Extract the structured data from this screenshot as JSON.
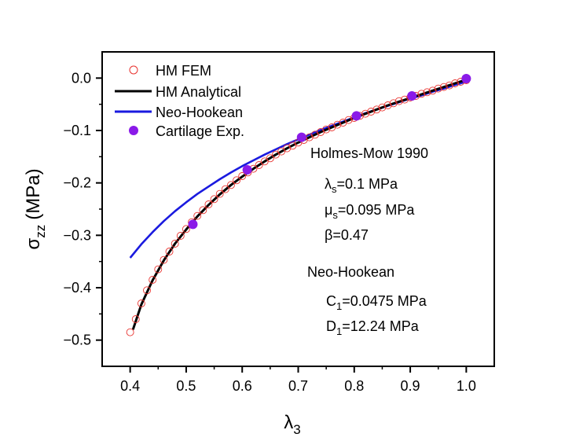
{
  "chart_data": {
    "type": "line",
    "xlabel": "λ",
    "xlabel_sub": "3",
    "ylabel": "σ",
    "ylabel_sub": "zz",
    "ylabel_unit": "(MPa)",
    "xlim": [
      0.35,
      1.05
    ],
    "ylim": [
      -0.55,
      0.05
    ],
    "xticks": [
      0.4,
      0.5,
      0.6,
      0.7,
      0.8,
      0.9,
      1.0
    ],
    "xtick_labels": [
      "0.4",
      "0.5",
      "0.6",
      "0.7",
      "0.8",
      "0.9",
      "1.0"
    ],
    "yticks": [
      0.0,
      -0.1,
      -0.2,
      -0.3,
      -0.4,
      -0.5
    ],
    "ytick_labels": [
      "0.0",
      "−0.1",
      "−0.2",
      "−0.3",
      "−0.4",
      "−0.5"
    ],
    "grid": false,
    "legend_position": "top-left",
    "series": [
      {
        "name": "HM FEM",
        "kind": "markers-open",
        "color": "#e8322e",
        "x": [
          0.4,
          0.41,
          0.42,
          0.43,
          0.44,
          0.45,
          0.46,
          0.47,
          0.48,
          0.49,
          0.5,
          0.51,
          0.52,
          0.53,
          0.54,
          0.55,
          0.56,
          0.57,
          0.58,
          0.59,
          0.6,
          0.61,
          0.62,
          0.63,
          0.64,
          0.65,
          0.66,
          0.67,
          0.68,
          0.69,
          0.7,
          0.71,
          0.72,
          0.73,
          0.74,
          0.75,
          0.76,
          0.77,
          0.78,
          0.79,
          0.8,
          0.81,
          0.82,
          0.83,
          0.84,
          0.85,
          0.86,
          0.87,
          0.88,
          0.89,
          0.9,
          0.91,
          0.92,
          0.93,
          0.94,
          0.95,
          0.96,
          0.97,
          0.98,
          0.99,
          1.0
        ],
        "y": [
          -0.485,
          -0.46,
          -0.43,
          -0.405,
          -0.385,
          -0.365,
          -0.347,
          -0.331,
          -0.316,
          -0.301,
          -0.288,
          -0.275,
          -0.263,
          -0.252,
          -0.241,
          -0.231,
          -0.221,
          -0.212,
          -0.204,
          -0.195,
          -0.187,
          -0.18,
          -0.173,
          -0.166,
          -0.159,
          -0.153,
          -0.146,
          -0.14,
          -0.134,
          -0.129,
          -0.123,
          -0.118,
          -0.113,
          -0.108,
          -0.103,
          -0.098,
          -0.094,
          -0.089,
          -0.085,
          -0.08,
          -0.076,
          -0.072,
          -0.068,
          -0.064,
          -0.06,
          -0.056,
          -0.052,
          -0.048,
          -0.044,
          -0.041,
          -0.037,
          -0.034,
          -0.03,
          -0.027,
          -0.024,
          -0.02,
          -0.017,
          -0.014,
          -0.01,
          -0.007,
          -0.004
        ]
      },
      {
        "name": "HM Analytical",
        "kind": "line",
        "color": "#000000",
        "x": [
          0.405,
          0.42,
          0.44,
          0.46,
          0.48,
          0.5,
          0.52,
          0.54,
          0.56,
          0.58,
          0.6,
          0.62,
          0.64,
          0.66,
          0.68,
          0.7,
          0.72,
          0.74,
          0.76,
          0.78,
          0.8,
          0.82,
          0.84,
          0.86,
          0.88,
          0.9,
          0.92,
          0.94,
          0.96,
          0.98,
          1.0
        ],
        "y": [
          -0.48,
          -0.432,
          -0.386,
          -0.348,
          -0.316,
          -0.289,
          -0.264,
          -0.242,
          -0.222,
          -0.204,
          -0.188,
          -0.173,
          -0.159,
          -0.146,
          -0.134,
          -0.123,
          -0.113,
          -0.103,
          -0.094,
          -0.085,
          -0.076,
          -0.068,
          -0.06,
          -0.052,
          -0.045,
          -0.038,
          -0.031,
          -0.024,
          -0.017,
          -0.01,
          -0.003
        ]
      },
      {
        "name": "Neo-Hookean",
        "kind": "line",
        "color": "#1a1adf",
        "x": [
          0.4,
          0.42,
          0.44,
          0.46,
          0.48,
          0.5,
          0.52,
          0.54,
          0.56,
          0.58,
          0.6,
          0.62,
          0.64,
          0.66,
          0.68,
          0.7,
          0.72,
          0.74,
          0.76,
          0.78,
          0.8,
          0.82,
          0.84,
          0.86,
          0.88,
          0.9,
          0.92,
          0.94,
          0.96,
          0.98,
          1.0
        ],
        "y": [
          -0.343,
          -0.317,
          -0.294,
          -0.273,
          -0.254,
          -0.237,
          -0.221,
          -0.207,
          -0.193,
          -0.18,
          -0.168,
          -0.157,
          -0.146,
          -0.136,
          -0.126,
          -0.117,
          -0.108,
          -0.099,
          -0.091,
          -0.083,
          -0.075,
          -0.067,
          -0.06,
          -0.053,
          -0.046,
          -0.039,
          -0.033,
          -0.026,
          -0.02,
          -0.013,
          -0.007
        ]
      },
      {
        "name": "Cartilage Exp.",
        "kind": "markers-filled",
        "color": "#8a1ae8",
        "x": [
          0.512,
          0.609,
          0.706,
          0.804,
          0.903,
          1.0
        ],
        "y": [
          -0.279,
          -0.175,
          -0.113,
          -0.072,
          -0.034,
          -0.001
        ]
      }
    ],
    "annotations": {
      "hm_title": "Holmes-Mow 1990",
      "hm_lambda_sym": "λ",
      "hm_lambda_sub": "s",
      "hm_lambda_val": "=0.1 MPa",
      "hm_mu_sym": "μ",
      "hm_mu_sub": "s",
      "hm_mu_val": "=0.095 MPa",
      "hm_beta": "β=0.47",
      "nh_title": "Neo-Hookean",
      "nh_c_sym": "C",
      "nh_c_sub": "1",
      "nh_c_val": "=0.0475 MPa",
      "nh_d_sym": "D",
      "nh_d_sub": "1",
      "nh_d_val": "=12.24 MPa"
    }
  }
}
